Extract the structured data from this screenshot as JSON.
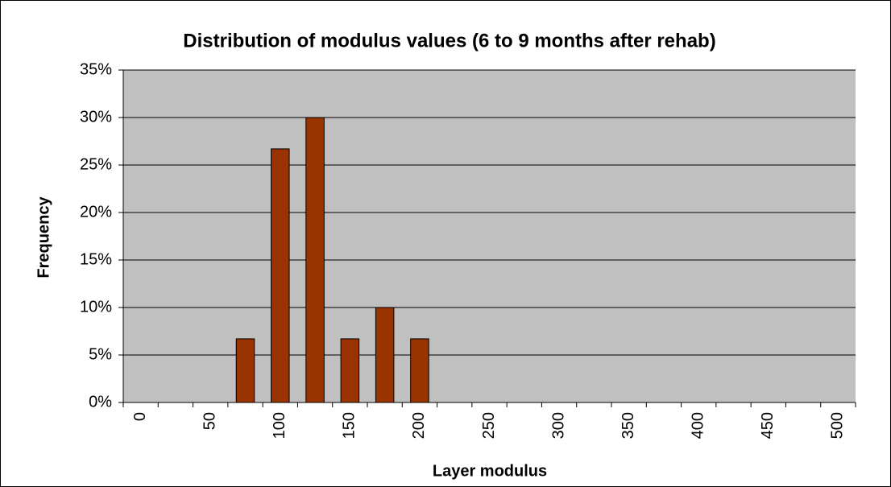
{
  "chart_data": {
    "type": "bar",
    "title": "Distribution of modulus values (6 to 9 months after rehab)",
    "x_label": "Layer modulus",
    "y_label": "Frequency",
    "categories": [
      "0",
      null,
      "50",
      null,
      "100",
      null,
      "150",
      null,
      "200",
      null,
      "250",
      null,
      "300",
      null,
      "350",
      null,
      "400",
      null,
      "450",
      null,
      "500"
    ],
    "values": [
      0,
      0,
      0,
      6.7,
      26.7,
      30,
      6.7,
      10,
      6.7,
      0,
      0,
      0,
      0,
      0,
      0,
      0,
      0,
      0,
      0,
      0,
      0
    ],
    "color": "#993300",
    "ylim": [
      0,
      35
    ],
    "yticks": [
      {
        "value": 0,
        "label": "0%"
      },
      {
        "value": 5,
        "label": "5%"
      },
      {
        "value": 10,
        "label": "10%"
      },
      {
        "value": 15,
        "label": "15%"
      },
      {
        "value": 20,
        "label": "20%"
      },
      {
        "value": 25,
        "label": "25%"
      },
      {
        "value": 30,
        "label": "30%"
      },
      {
        "value": 35,
        "label": "35%"
      }
    ],
    "grid": true
  }
}
